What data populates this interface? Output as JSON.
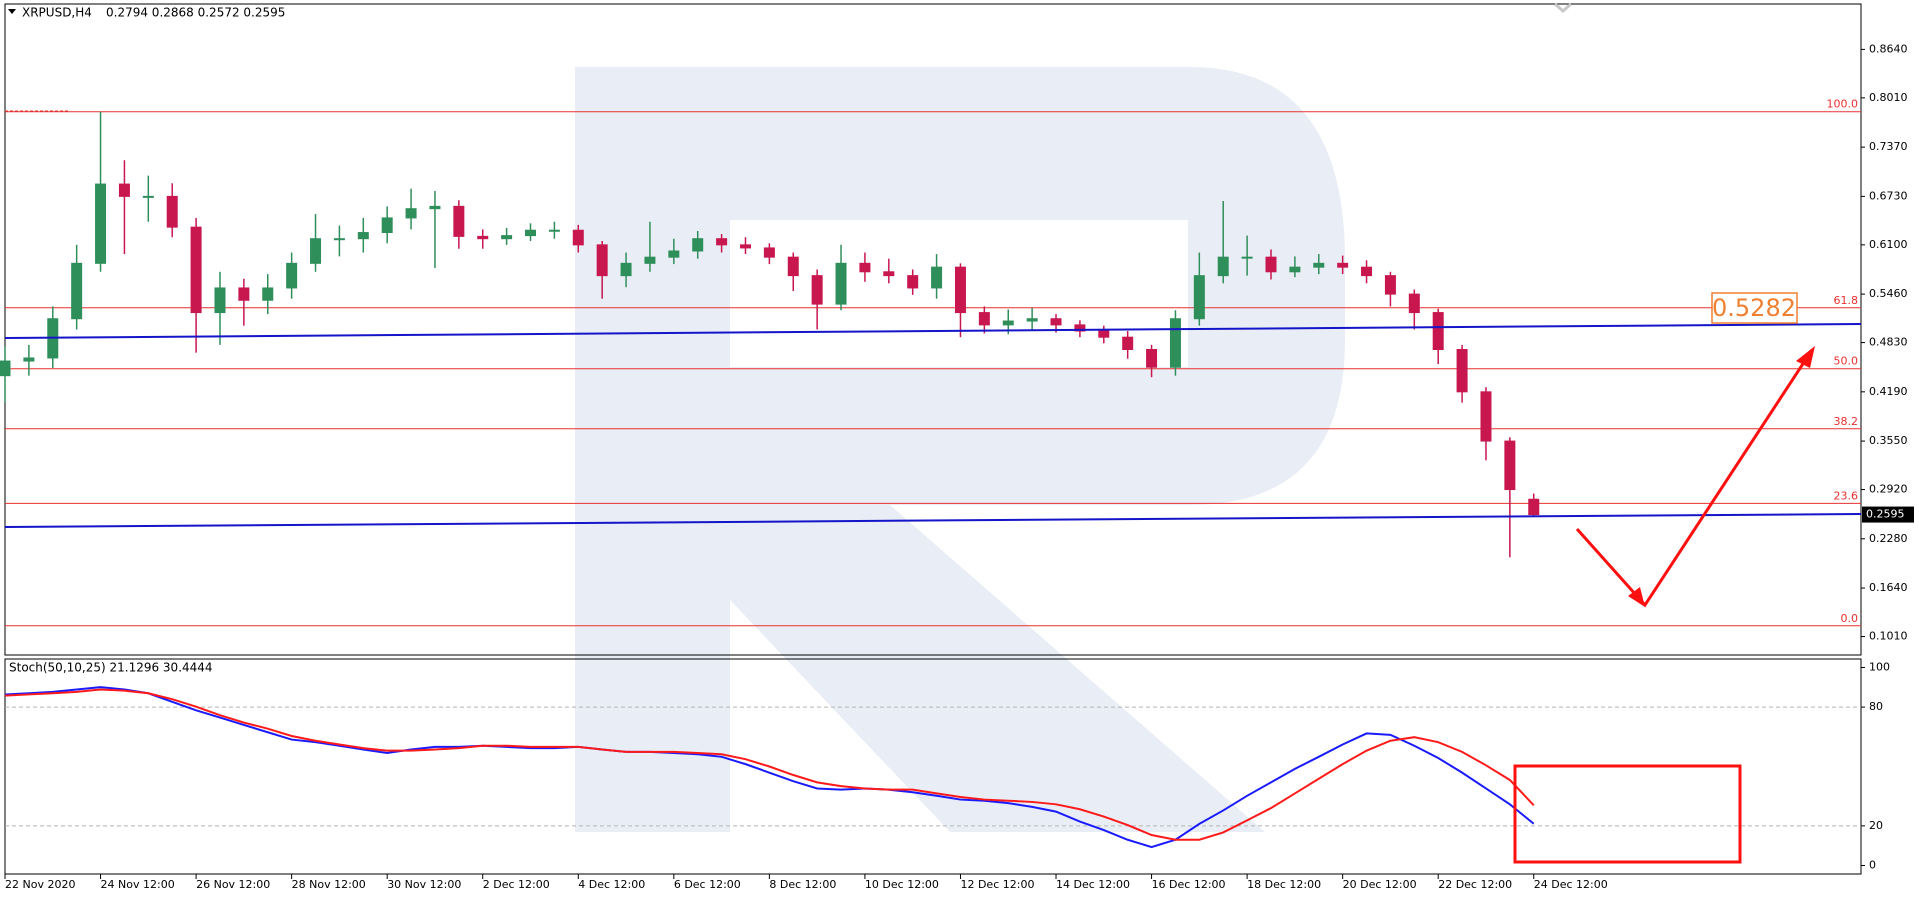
{
  "chart_data": [
    {
      "type": "candlestick",
      "symbol": "XRPUSD,H4",
      "ohlc_readout": "0.2794 0.2868 0.2572 0.2595",
      "up_color": "#2f8f5b",
      "down_color": "#c8174f",
      "open": [
        0.44,
        0.459,
        0.463,
        0.514,
        0.586,
        0.689,
        0.673,
        0.673,
        0.633,
        0.522,
        0.554,
        0.538,
        0.554,
        0.586,
        0.618,
        0.618,
        0.626,
        0.645,
        0.657,
        0.66,
        0.621,
        0.618,
        0.622,
        0.629,
        0.629,
        0.61,
        0.57,
        0.586,
        0.594,
        0.602,
        0.618,
        0.61,
        0.606,
        0.594,
        0.57,
        0.533,
        0.586,
        0.575,
        0.57,
        0.554,
        0.581,
        0.522,
        0.506,
        0.511,
        0.514,
        0.506,
        0.498,
        0.49,
        0.474,
        0.451,
        0.514,
        0.57,
        0.594,
        0.594,
        0.575,
        0.581,
        0.586,
        0.581,
        0.57,
        0.546,
        0.522,
        0.474,
        0.419,
        0.355,
        0.2794
      ],
      "high": [
        0.478,
        0.48,
        0.53,
        0.61,
        0.783,
        0.72,
        0.7,
        0.69,
        0.645,
        0.575,
        0.566,
        0.572,
        0.6,
        0.65,
        0.635,
        0.645,
        0.66,
        0.683,
        0.68,
        0.668,
        0.63,
        0.632,
        0.638,
        0.64,
        0.636,
        0.615,
        0.6,
        0.64,
        0.618,
        0.628,
        0.624,
        0.62,
        0.612,
        0.6,
        0.578,
        0.61,
        0.6,
        0.592,
        0.578,
        0.598,
        0.586,
        0.53,
        0.526,
        0.528,
        0.52,
        0.512,
        0.505,
        0.498,
        0.48,
        0.525,
        0.6,
        0.667,
        0.622,
        0.604,
        0.595,
        0.598,
        0.596,
        0.59,
        0.575,
        0.552,
        0.527,
        0.48,
        0.425,
        0.36,
        0.2868
      ],
      "low": [
        0.405,
        0.44,
        0.45,
        0.5,
        0.575,
        0.598,
        0.64,
        0.62,
        0.47,
        0.48,
        0.505,
        0.52,
        0.54,
        0.575,
        0.595,
        0.6,
        0.612,
        0.63,
        0.58,
        0.605,
        0.605,
        0.61,
        0.615,
        0.618,
        0.6,
        0.54,
        0.555,
        0.575,
        0.585,
        0.592,
        0.6,
        0.598,
        0.585,
        0.55,
        0.5,
        0.525,
        0.562,
        0.56,
        0.545,
        0.54,
        0.49,
        0.495,
        0.494,
        0.5,
        0.496,
        0.49,
        0.482,
        0.462,
        0.438,
        0.44,
        0.505,
        0.56,
        0.57,
        0.565,
        0.568,
        0.572,
        0.572,
        0.56,
        0.53,
        0.5,
        0.455,
        0.405,
        0.33,
        0.204,
        0.2572
      ],
      "close": [
        0.459,
        0.463,
        0.514,
        0.586,
        0.689,
        0.673,
        0.673,
        0.633,
        0.522,
        0.554,
        0.538,
        0.554,
        0.586,
        0.618,
        0.618,
        0.626,
        0.645,
        0.657,
        0.66,
        0.621,
        0.618,
        0.622,
        0.629,
        0.629,
        0.61,
        0.57,
        0.586,
        0.594,
        0.602,
        0.618,
        0.61,
        0.606,
        0.594,
        0.57,
        0.533,
        0.586,
        0.575,
        0.57,
        0.554,
        0.581,
        0.522,
        0.506,
        0.511,
        0.514,
        0.506,
        0.498,
        0.49,
        0.474,
        0.451,
        0.514,
        0.57,
        0.594,
        0.594,
        0.575,
        0.581,
        0.586,
        0.581,
        0.57,
        0.546,
        0.522,
        0.474,
        0.419,
        0.355,
        0.292,
        0.2595
      ],
      "xlim": [
        0,
        77.7
      ],
      "xticks": [
        {
          "value": 0,
          "label": "22 Nov 2020"
        },
        {
          "value": 4,
          "label": "24 Nov 12:00"
        },
        {
          "value": 8,
          "label": "26 Nov 12:00"
        },
        {
          "value": 12,
          "label": "28 Nov 12:00"
        },
        {
          "value": 16,
          "label": "30 Nov 12:00"
        },
        {
          "value": 20,
          "label": "2 Dec 12:00"
        },
        {
          "value": 24,
          "label": "4 Dec 12:00"
        },
        {
          "value": 28,
          "label": "6 Dec 12:00"
        },
        {
          "value": 32,
          "label": "8 Dec 12:00"
        },
        {
          "value": 36,
          "label": "10 Dec 12:00"
        },
        {
          "value": 40,
          "label": "12 Dec 12:00"
        },
        {
          "value": 44,
          "label": "14 Dec 12:00"
        },
        {
          "value": 48,
          "label": "16 Dec 12:00"
        },
        {
          "value": 52,
          "label": "18 Dec 12:00"
        },
        {
          "value": 56,
          "label": "20 Dec 12:00"
        },
        {
          "value": 60,
          "label": "22 Dec 12:00"
        },
        {
          "value": 64,
          "label": "24 Dec 12:00"
        }
      ],
      "ylim": [
        0.077,
        0.923
      ],
      "yticks": [
        {
          "value": 0.864,
          "label": "0.8640"
        },
        {
          "value": 0.801,
          "label": "0.8010"
        },
        {
          "value": 0.737,
          "label": "0.7370"
        },
        {
          "value": 0.673,
          "label": "0.6730"
        },
        {
          "value": 0.61,
          "label": "0.6100"
        },
        {
          "value": 0.546,
          "label": "0.5460"
        },
        {
          "value": 0.483,
          "label": "0.4830"
        },
        {
          "value": 0.419,
          "label": "0.4190"
        },
        {
          "value": 0.355,
          "label": "0.3550"
        },
        {
          "value": 0.292,
          "label": "0.2920"
        },
        {
          "value": 0.228,
          "label": "0.2280"
        },
        {
          "value": 0.164,
          "label": "0.1640"
        },
        {
          "value": 0.101,
          "label": "0.1010"
        }
      ],
      "fib_color": "#e8302f",
      "fib_levels": [
        {
          "value": 0.783,
          "label": "100.0"
        },
        {
          "value": 0.5282,
          "label": "61.8"
        },
        {
          "value": 0.449,
          "label": "50.0"
        },
        {
          "value": 0.371,
          "label": "38.2"
        },
        {
          "value": 0.274,
          "label": "23.6"
        },
        {
          "value": 0.115,
          "label": "0.0"
        }
      ],
      "level_annotation": "0.5282",
      "last_price": {
        "value": 0.2595,
        "label": "0.2595"
      }
    },
    {
      "type": "line",
      "title": "Stoch(50,10,25) 21.1296 30.4444",
      "xlim": [
        0,
        77.7
      ],
      "ylim": [
        -4.3,
        104.3
      ],
      "yticks": [
        100,
        80,
        20,
        0
      ],
      "dashed_levels": [
        80,
        20
      ],
      "series": [
        {
          "color": "#1a1aff",
          "values": [
            86.4,
            87.0,
            87.7,
            88.9,
            90.1,
            88.9,
            87.0,
            82.7,
            78.4,
            74.7,
            71.0,
            67.3,
            63.6,
            62.3,
            60.5,
            58.6,
            56.8,
            58.6,
            59.9,
            59.9,
            60.5,
            59.9,
            59.3,
            59.3,
            59.9,
            58.6,
            57.4,
            57.4,
            56.8,
            56.2,
            54.9,
            51.2,
            46.9,
            42.6,
            38.9,
            38.3,
            38.9,
            38.3,
            37.0,
            35.2,
            33.3,
            32.7,
            31.5,
            29.6,
            27.2,
            22.2,
            17.9,
            13.0,
            9.3,
            13.0,
            21.0,
            27.8,
            35.2,
            42.0,
            48.8,
            54.9,
            61.1,
            66.7,
            66.0,
            60.5,
            54.3,
            46.9,
            38.9,
            30.9,
            21.1
          ]
        },
        {
          "color": "#ff1a1a",
          "values": [
            85.8,
            86.4,
            87.0,
            87.7,
            88.9,
            88.3,
            87.0,
            84.0,
            80.2,
            75.9,
            72.2,
            69.1,
            65.4,
            63.0,
            61.1,
            59.3,
            58.0,
            58.0,
            58.6,
            59.3,
            60.5,
            60.5,
            59.9,
            59.9,
            59.9,
            58.6,
            57.4,
            57.4,
            57.4,
            56.8,
            56.2,
            53.7,
            50.0,
            45.7,
            42.0,
            40.1,
            38.9,
            38.3,
            38.3,
            36.4,
            34.6,
            33.3,
            32.7,
            32.1,
            30.9,
            28.4,
            24.7,
            20.4,
            15.4,
            13.0,
            13.0,
            16.7,
            22.8,
            29.0,
            36.4,
            43.8,
            51.2,
            58.0,
            63.0,
            64.8,
            62.3,
            57.4,
            50.6,
            43.2,
            30.4
          ]
        }
      ]
    }
  ]
}
